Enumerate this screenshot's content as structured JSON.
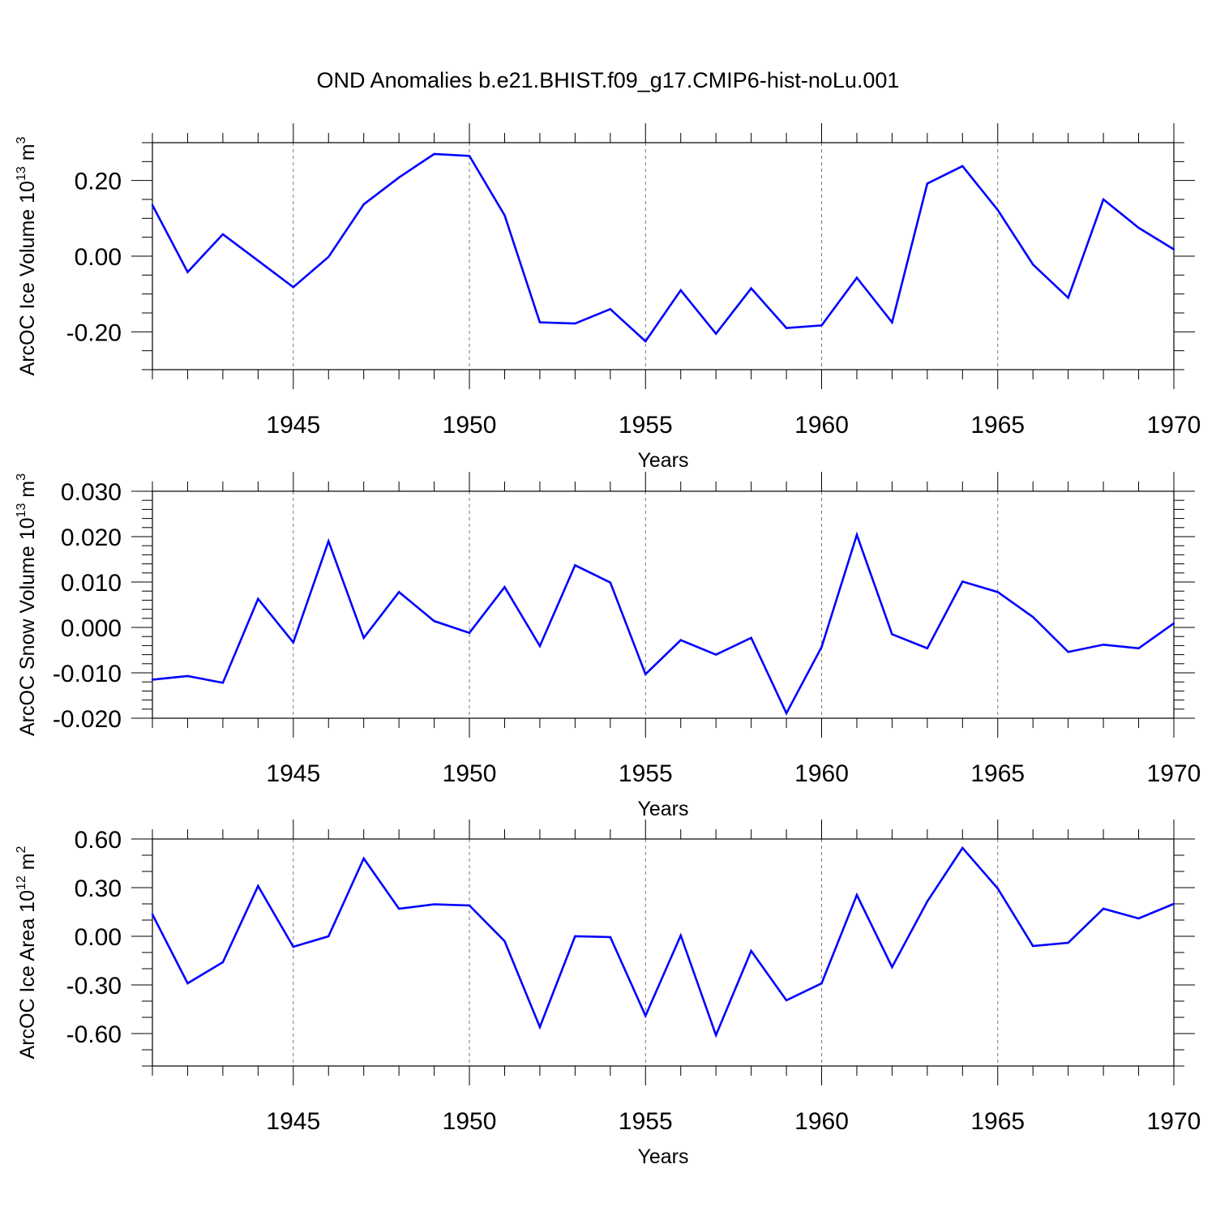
{
  "title": "OND Anomalies b.e21.BHIST.f09_g17.CMIP6-hist-noLu.001",
  "colors": {
    "line": "#0000ff",
    "axis": "#000000",
    "grid": "#777777"
  },
  "chart_data": [
    {
      "type": "line",
      "ylabel": "ArcOC Ice Volume 10",
      "ylabel_exponent": "13",
      "ylabel_unit": "m",
      "ylabel_unit_exponent": "3",
      "xlabel": "Years",
      "xlim": [
        1941,
        1970
      ],
      "ylim": [
        -0.3,
        0.3
      ],
      "x_ticks": [
        1945,
        1950,
        1955,
        1960,
        1965,
        1970
      ],
      "x_tick_labels": [
        "1945",
        "1950",
        "1955",
        "1960",
        "1965",
        "1970"
      ],
      "y_ticks": [
        -0.2,
        0.0,
        0.2
      ],
      "y_tick_labels": [
        "-0.20",
        "0.00",
        "0.20"
      ],
      "y_minor_step": 0.05,
      "x_gridlines": [
        1945,
        1950,
        1955,
        1960,
        1965
      ],
      "x": [
        1941,
        1942,
        1943,
        1944,
        1945,
        1946,
        1947,
        1948,
        1949,
        1950,
        1951,
        1952,
        1953,
        1954,
        1955,
        1956,
        1957,
        1958,
        1959,
        1960,
        1961,
        1962,
        1963,
        1964,
        1965,
        1966,
        1967,
        1968,
        1969,
        1970
      ],
      "series": [
        {
          "values": [
            0.135,
            -0.042,
            0.058,
            -0.012,
            -0.082,
            -0.002,
            0.137,
            0.208,
            0.27,
            0.265,
            0.108,
            -0.175,
            -0.178,
            -0.14,
            -0.225,
            -0.09,
            -0.205,
            -0.085,
            -0.19,
            -0.183,
            -0.057,
            -0.175,
            0.192,
            0.238,
            0.122,
            -0.022,
            -0.11,
            0.15,
            0.075,
            0.018
          ]
        }
      ]
    },
    {
      "type": "line",
      "ylabel": "ArcOC Snow Volume 10",
      "ylabel_exponent": "13",
      "ylabel_unit": "m",
      "ylabel_unit_exponent": "3",
      "xlabel": "Years",
      "xlim": [
        1941,
        1970
      ],
      "ylim": [
        -0.02,
        0.03
      ],
      "x_ticks": [
        1945,
        1950,
        1955,
        1960,
        1965,
        1970
      ],
      "x_tick_labels": [
        "1945",
        "1950",
        "1955",
        "1960",
        "1965",
        "1970"
      ],
      "y_ticks": [
        -0.02,
        -0.01,
        0.0,
        0.01,
        0.02,
        0.03
      ],
      "y_tick_labels": [
        "-0.020",
        "-0.010",
        "0.000",
        "0.010",
        "0.020",
        "0.030"
      ],
      "y_minor_step": 0.002,
      "x_gridlines": [
        1945,
        1950,
        1955,
        1960,
        1965
      ],
      "x": [
        1941,
        1942,
        1943,
        1944,
        1945,
        1946,
        1947,
        1948,
        1949,
        1950,
        1951,
        1952,
        1953,
        1954,
        1955,
        1956,
        1957,
        1958,
        1959,
        1960,
        1961,
        1962,
        1963,
        1964,
        1965,
        1966,
        1967,
        1968,
        1969,
        1970
      ],
      "series": [
        {
          "values": [
            -0.0115,
            -0.0107,
            -0.0122,
            0.0063,
            -0.0033,
            0.019,
            -0.0023,
            0.0078,
            0.0014,
            -0.0012,
            0.0089,
            -0.0041,
            0.0137,
            0.0099,
            -0.0103,
            -0.0028,
            -0.006,
            -0.0023,
            -0.0189,
            -0.0043,
            0.0204,
            -0.0015,
            -0.0046,
            0.0101,
            0.0078,
            0.0023,
            -0.0054,
            -0.0038,
            -0.0046,
            0.0009
          ]
        }
      ]
    },
    {
      "type": "line",
      "ylabel": "ArcOC Ice Area 10",
      "ylabel_exponent": "12",
      "ylabel_unit": "m",
      "ylabel_unit_exponent": "2",
      "xlabel": "Years",
      "xlim": [
        1941,
        1970
      ],
      "ylim": [
        -0.8,
        0.6
      ],
      "x_ticks": [
        1945,
        1950,
        1955,
        1960,
        1965,
        1970
      ],
      "x_tick_labels": [
        "1945",
        "1950",
        "1955",
        "1960",
        "1965",
        "1970"
      ],
      "y_ticks": [
        -0.6,
        -0.3,
        0.0,
        0.3,
        0.6
      ],
      "y_tick_labels": [
        "-0.60",
        "-0.30",
        "0.00",
        "0.30",
        "0.60"
      ],
      "y_minor_step": 0.1,
      "x_gridlines": [
        1945,
        1950,
        1955,
        1960,
        1965
      ],
      "x": [
        1941,
        1942,
        1943,
        1944,
        1945,
        1946,
        1947,
        1948,
        1949,
        1950,
        1951,
        1952,
        1953,
        1954,
        1955,
        1956,
        1957,
        1958,
        1959,
        1960,
        1961,
        1962,
        1963,
        1964,
        1965,
        1966,
        1967,
        1968,
        1969,
        1970
      ],
      "series": [
        {
          "values": [
            0.135,
            -0.29,
            -0.16,
            0.31,
            -0.065,
            0.0,
            0.48,
            0.17,
            0.197,
            0.19,
            -0.03,
            -0.56,
            0.0,
            -0.005,
            -0.49,
            0.005,
            -0.61,
            -0.09,
            -0.395,
            -0.29,
            0.255,
            -0.19,
            0.215,
            0.545,
            0.295,
            -0.06,
            -0.04,
            0.17,
            0.11,
            0.2
          ]
        }
      ]
    }
  ]
}
